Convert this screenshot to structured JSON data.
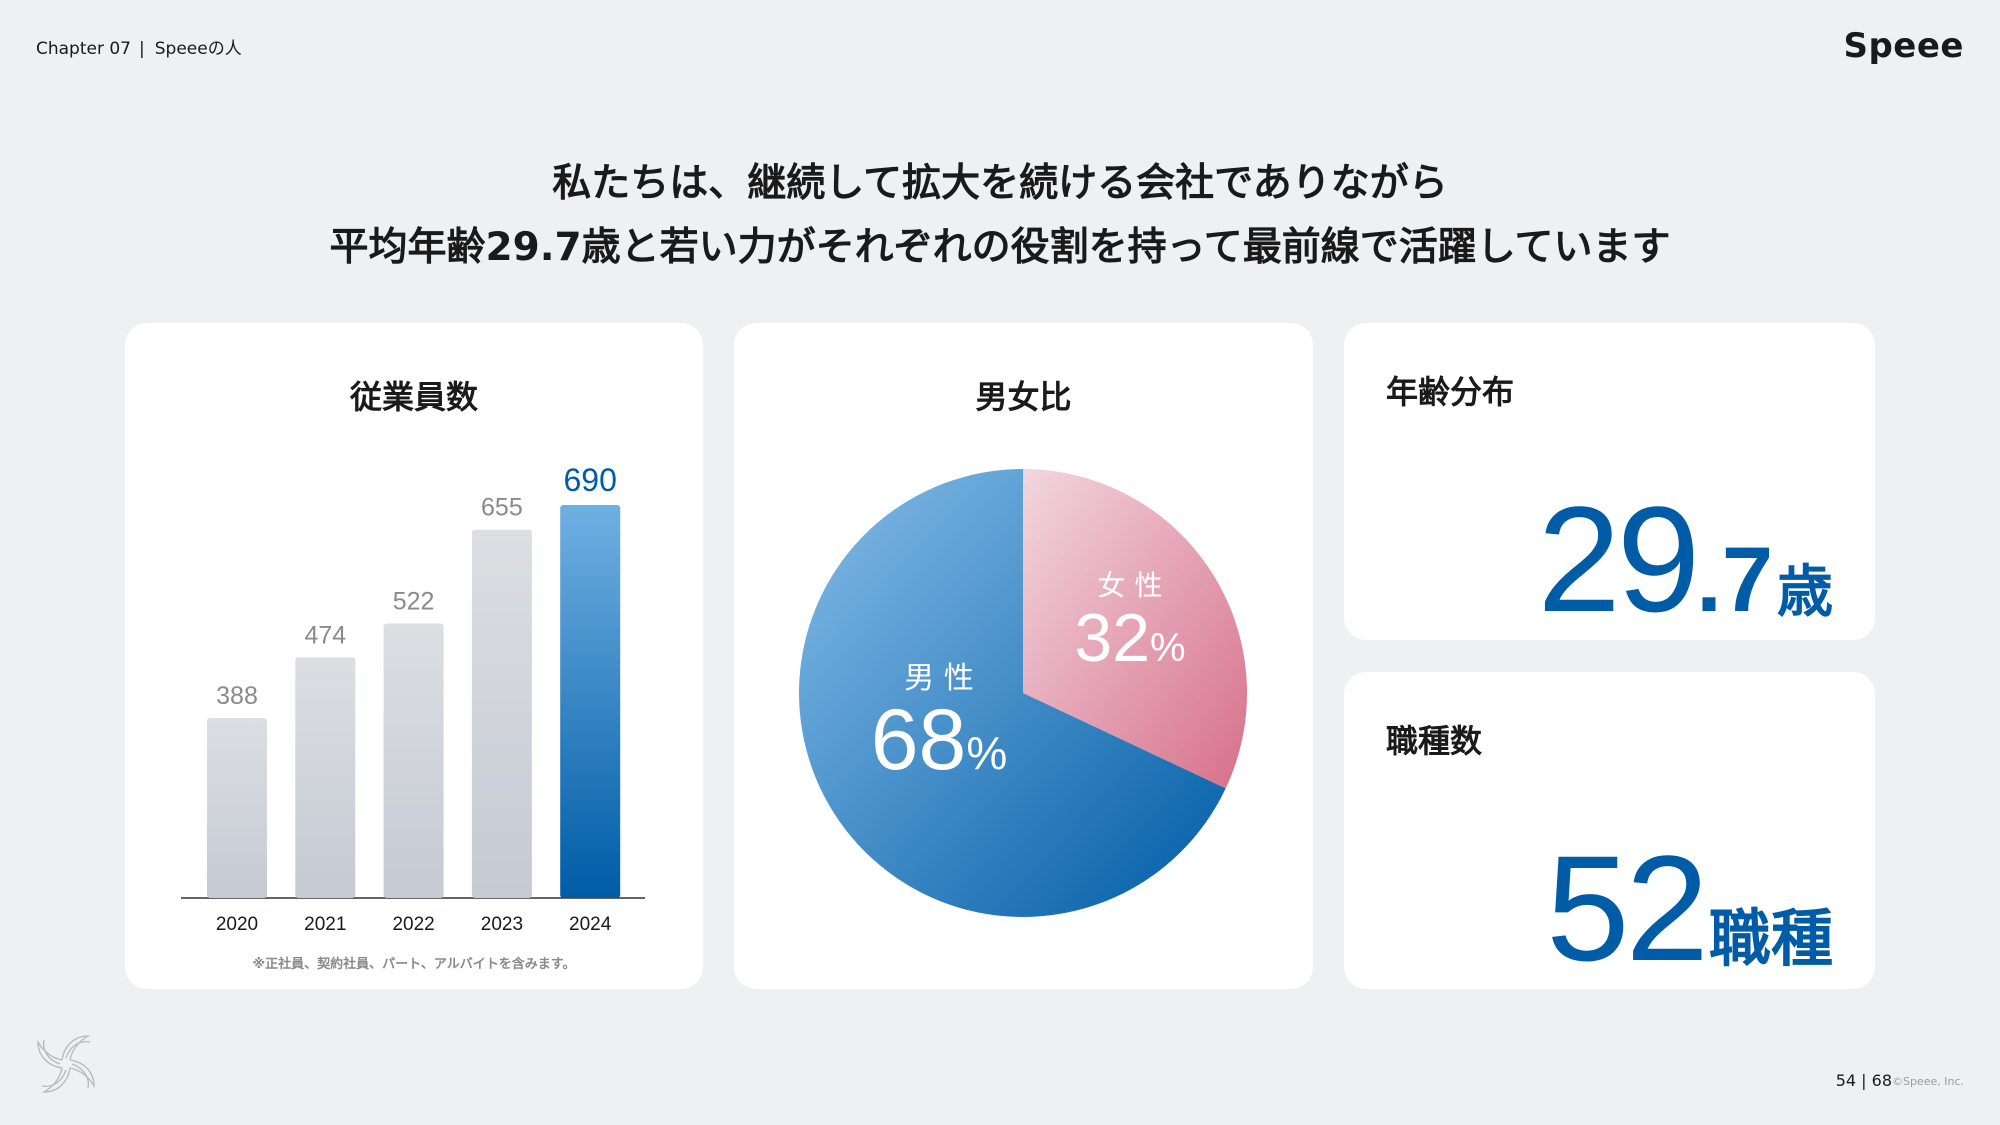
{
  "header": {
    "chapter": "Chapter 07",
    "section": "Speeeの人",
    "brand": "Speee"
  },
  "headline": {
    "line1": "私たちは、継続して拡大を続ける会社でありながら",
    "line2": "平均年齢29.7歳と若い力がそれぞれの役割を持って最前線で活躍しています"
  },
  "employees": {
    "title": "従業員数",
    "note": "※正社員、契約社員、パート、アルバイトを含みます。"
  },
  "gender": {
    "title": "男女比",
    "female_label": "女 性",
    "female_value": "32",
    "male_label": "男 性",
    "male_value": "68",
    "percent": "%"
  },
  "age": {
    "title": "年齢分布",
    "int": "29",
    "dec": ".7",
    "unit": "歳"
  },
  "jobs": {
    "title": "職種数",
    "value": "52",
    "unit": "職種"
  },
  "footer": {
    "page": "54 | 68",
    "copyright": "©Speee, Inc."
  },
  "colors": {
    "accent": "#005ca6",
    "bar_grey": "#d3d7de",
    "female_pink": "#d9788e",
    "male_blue": "#3f8ed0"
  },
  "chart_data": [
    {
      "type": "bar",
      "title": "従業員数",
      "categories": [
        "2020",
        "2021",
        "2022",
        "2023",
        "2024"
      ],
      "values": [
        388,
        474,
        522,
        655,
        690
      ],
      "data_labels": [
        "388",
        "474",
        "522",
        "655",
        "690"
      ],
      "highlight": "2024",
      "grid": false
    },
    {
      "type": "pie",
      "title": "男女比",
      "categories": [
        "女性",
        "男性"
      ],
      "values": [
        32,
        68
      ]
    }
  ]
}
